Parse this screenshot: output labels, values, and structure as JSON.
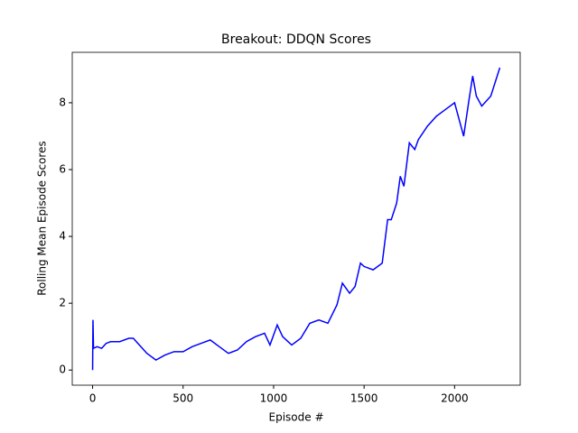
{
  "chart_data": {
    "type": "line",
    "title": "Breakout: DDQN Scores",
    "x_label": "Episode #",
    "y_label": "Rolling Mean Episode Scores",
    "x": [
      0,
      2,
      5,
      25,
      50,
      75,
      100,
      150,
      200,
      225,
      250,
      300,
      350,
      400,
      450,
      500,
      550,
      600,
      650,
      700,
      750,
      800,
      850,
      900,
      950,
      980,
      1020,
      1050,
      1100,
      1150,
      1200,
      1250,
      1300,
      1350,
      1380,
      1420,
      1450,
      1480,
      1500,
      1550,
      1600,
      1630,
      1650,
      1680,
      1700,
      1720,
      1750,
      1780,
      1800,
      1850,
      1900,
      1950,
      2000,
      2050,
      2080,
      2100,
      2120,
      2150,
      2200,
      2250
    ],
    "series": [
      {
        "name": "DDQN",
        "color": "#0000ff",
        "values": [
          0,
          1.5,
          0.65,
          0.7,
          0.65,
          0.8,
          0.85,
          0.85,
          0.95,
          0.95,
          0.8,
          0.5,
          0.3,
          0.45,
          0.55,
          0.55,
          0.7,
          0.8,
          0.9,
          0.7,
          0.5,
          0.6,
          0.85,
          1.0,
          1.1,
          0.75,
          1.35,
          1.0,
          0.75,
          0.95,
          1.4,
          1.5,
          1.4,
          1.95,
          2.6,
          2.3,
          2.5,
          3.2,
          3.1,
          3.0,
          3.2,
          4.5,
          4.5,
          5.0,
          5.8,
          5.5,
          6.8,
          6.6,
          6.9,
          7.3,
          7.6,
          7.8,
          8.0,
          7.0,
          8.1,
          8.8,
          8.2,
          7.9,
          8.2,
          9.05
        ]
      }
    ],
    "xlim": [
      -112.5,
      2362.5
    ],
    "xticks": [
      0,
      500,
      1000,
      1500,
      2000
    ],
    "ylim": [
      -0.453,
      9.51
    ],
    "yticks": [
      0,
      2,
      4,
      6,
      8
    ],
    "grid": false
  }
}
